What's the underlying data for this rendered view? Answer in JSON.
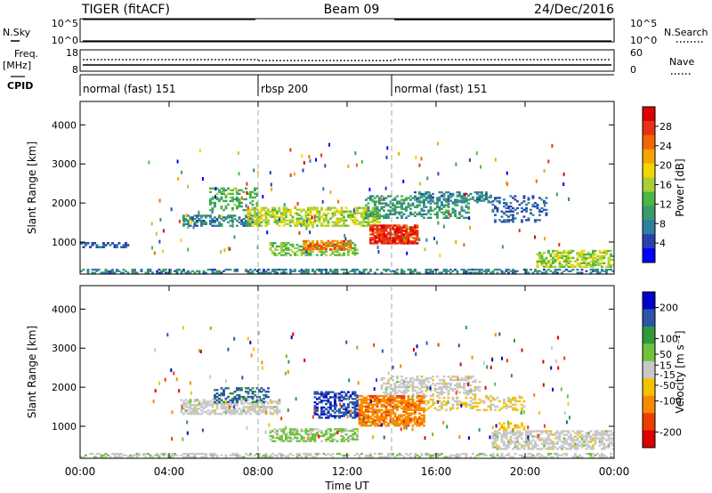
{
  "header": {
    "station": "TIGER (fitACF)",
    "beam": "Beam 09",
    "date": "24/Dec/2016"
  },
  "left_labels": {
    "nsky": "N.Sky",
    "freq": "Freq.",
    "freq_unit": "[MHz]",
    "cpid": "CPID"
  },
  "right_labels": {
    "nsearch": "N.Search",
    "nave": "Nave"
  },
  "nsky_ticks": [
    "10^5",
    "10^0"
  ],
  "nsearch_ticks": [
    "10^5",
    "10^0"
  ],
  "freq_ticks": [
    "18",
    "8"
  ],
  "nave_ticks": [
    "60",
    "0"
  ],
  "cpid_segments": [
    {
      "label": "normal (fast) 151",
      "start_h": 0,
      "end_h": 8
    },
    {
      "label": "rbsp 200",
      "start_h": 8,
      "end_h": 14
    },
    {
      "label": "normal (fast) 151",
      "start_h": 14,
      "end_h": 24
    }
  ],
  "x_axis": {
    "label": "Time UT",
    "ticks": [
      "00:00",
      "04:00",
      "08:00",
      "12:00",
      "16:00",
      "20:00",
      "00:00"
    ]
  },
  "panels": {
    "power": {
      "ylabel": "Slant Range [km]",
      "yticks": [
        "1000",
        "2000",
        "3000",
        "4000"
      ],
      "colorbar_label": "Power [dB]",
      "colorbar_ticks": [
        "28",
        "24",
        "20",
        "16",
        "12",
        "8",
        "4"
      ]
    },
    "velocity": {
      "ylabel": "Slant Range [km]",
      "yticks": [
        "1000",
        "2000",
        "3000",
        "4000"
      ],
      "colorbar_label": "Velocity [m s⁻¹]",
      "colorbar_ticks": [
        "200",
        "100",
        "50",
        "15",
        "-15",
        "-50",
        "-100",
        "-200"
      ]
    }
  },
  "chart_data": [
    {
      "type": "heatmap",
      "title": "Power",
      "xlabel": "Time UT",
      "ylabel": "Slant Range [km]",
      "xlim": [
        0,
        24
      ],
      "ylim": [
        180,
        4600
      ],
      "colorbar": {
        "label": "Power [dB]",
        "range": [
          0,
          32
        ],
        "colors": [
          "#0000ff",
          "#2c3fb0",
          "#2e7fa0",
          "#3b9a6b",
          "#4cb845",
          "#a8cf33",
          "#f2d600",
          "#f7a400",
          "#f26800",
          "#e83018",
          "#dc0000"
        ]
      },
      "regions": [
        {
          "t0": 0,
          "t1": 24,
          "r0": 200,
          "r1": 320,
          "level": 8,
          "density": 0.5
        },
        {
          "t0": 0,
          "t1": 2.2,
          "r0": 850,
          "r1": 1000,
          "level": 6,
          "density": 0.5
        },
        {
          "t0": 4.6,
          "t1": 7.8,
          "r0": 1400,
          "r1": 1700,
          "level": 8,
          "density": 0.55
        },
        {
          "t0": 5.8,
          "t1": 8.0,
          "r0": 1800,
          "r1": 2400,
          "level": 12,
          "density": 0.35
        },
        {
          "t0": 7.5,
          "t1": 13.5,
          "r0": 1400,
          "r1": 1900,
          "level": 16,
          "density": 0.6
        },
        {
          "t0": 8.5,
          "t1": 12.5,
          "r0": 650,
          "r1": 1000,
          "level": 14,
          "density": 0.5
        },
        {
          "t0": 10,
          "t1": 12.2,
          "r0": 800,
          "r1": 1050,
          "level": 24,
          "density": 0.7
        },
        {
          "t0": 13,
          "t1": 15.2,
          "r0": 950,
          "r1": 1450,
          "level": 28,
          "density": 0.85
        },
        {
          "t0": 12.8,
          "t1": 17.5,
          "r0": 1600,
          "r1": 2200,
          "level": 10,
          "density": 0.45
        },
        {
          "t0": 15,
          "t1": 18.5,
          "r0": 2000,
          "r1": 2300,
          "level": 8,
          "density": 0.4
        },
        {
          "t0": 18.5,
          "t1": 21,
          "r0": 1500,
          "r1": 2200,
          "level": 6,
          "density": 0.3
        },
        {
          "t0": 20.5,
          "t1": 24,
          "r0": 350,
          "r1": 800,
          "level": 16,
          "density": 0.6
        }
      ]
    },
    {
      "type": "heatmap",
      "title": "Velocity",
      "xlabel": "Time UT",
      "ylabel": "Slant Range [km]",
      "xlim": [
        0,
        24
      ],
      "ylim": [
        180,
        4600
      ],
      "colorbar": {
        "label": "Velocity [m s⁻¹]",
        "range": [
          -250,
          250
        ],
        "colors": [
          "#dc0000",
          "#ee3d00",
          "#f98a00",
          "#f5c200",
          "#c8c8c8",
          "#6fc23a",
          "#2f9a3a",
          "#2a55a8",
          "#0000cc"
        ]
      },
      "regions": [
        {
          "t0": 0,
          "t1": 24,
          "r0": 200,
          "r1": 320,
          "level": 10,
          "density": 0.5
        },
        {
          "t0": 4.5,
          "t1": 9.0,
          "r0": 1300,
          "r1": 1700,
          "level": 0,
          "density": 0.6
        },
        {
          "t0": 6.0,
          "t1": 8.5,
          "r0": 1600,
          "r1": 2000,
          "level": 150,
          "density": 0.4
        },
        {
          "t0": 8.5,
          "t1": 12.5,
          "r0": 600,
          "r1": 950,
          "level": 40,
          "density": 0.6
        },
        {
          "t0": 10.5,
          "t1": 12.5,
          "r0": 1200,
          "r1": 1900,
          "level": 180,
          "density": 0.5
        },
        {
          "t0": 12.5,
          "t1": 15.5,
          "r0": 1000,
          "r1": 1800,
          "level": -120,
          "density": 0.75
        },
        {
          "t0": 13.5,
          "t1": 18.0,
          "r0": 1800,
          "r1": 2300,
          "level": 0,
          "density": 0.45
        },
        {
          "t0": 15.5,
          "t1": 20.0,
          "r0": 1400,
          "r1": 1800,
          "level": -30,
          "density": 0.35
        },
        {
          "t0": 18.5,
          "t1": 24,
          "r0": 400,
          "r1": 900,
          "level": 0,
          "density": 0.6
        },
        {
          "t0": 18.8,
          "t1": 20.2,
          "r0": 900,
          "r1": 1100,
          "level": -70,
          "density": 0.4
        }
      ]
    }
  ]
}
